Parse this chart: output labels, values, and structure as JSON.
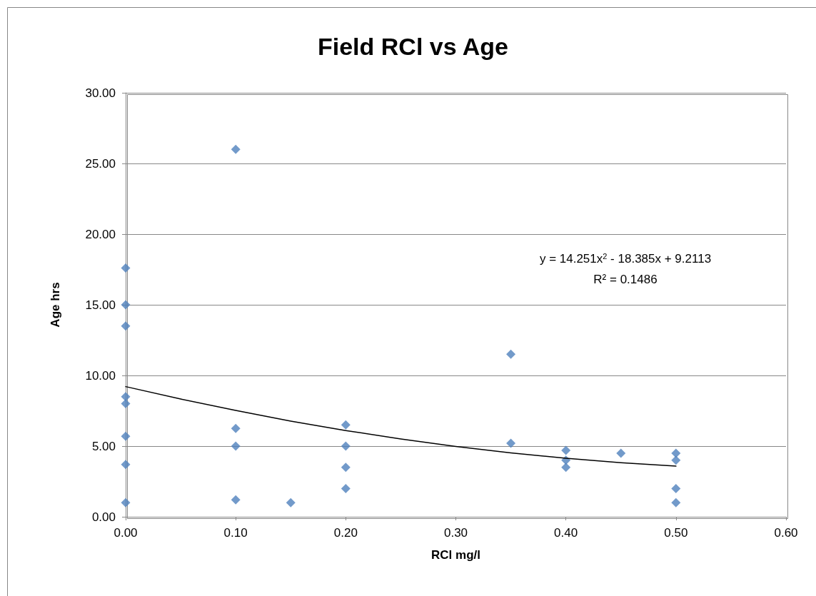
{
  "chart_data": {
    "type": "scatter",
    "title": "Field RCl vs Age",
    "xlabel": "RCl mg/l",
    "ylabel": "Age hrs",
    "series": [
      {
        "type": "scatter",
        "color": "#4f81bd",
        "marker": "diamond",
        "x": [
          0,
          0,
          0,
          0,
          0,
          0,
          0,
          0,
          0.1,
          0.1,
          0.1,
          0.1,
          0.15,
          0.2,
          0.2,
          0.2,
          0.2,
          0.35,
          0.35,
          0.4,
          0.4,
          0.4,
          0.45,
          0.5,
          0.5,
          0.5,
          0.5
        ],
        "values": [
          17.6,
          15,
          13.5,
          8.5,
          8,
          5.7,
          3.7,
          1,
          26,
          6.25,
          5,
          1.2,
          1,
          6.5,
          5,
          3.5,
          2,
          11.5,
          5.2,
          4.7,
          4,
          3.5,
          4.5,
          4.5,
          4,
          2,
          1
        ]
      },
      {
        "type": "line",
        "color": "#000000",
        "marker": "none",
        "x": [
          0,
          0.05,
          0.1,
          0.15,
          0.2,
          0.25,
          0.3,
          0.35,
          0.4,
          0.45,
          0.5
        ],
        "values": [
          9.21,
          8.33,
          7.52,
          6.77,
          6.1,
          5.51,
          4.98,
          4.52,
          4.14,
          3.82,
          3.58
        ]
      }
    ],
    "xlim": [
      0,
      0.6
    ],
    "xticks": [
      {
        "value": 0,
        "label": "0.00"
      },
      {
        "value": 0.1,
        "label": "0.10"
      },
      {
        "value": 0.2,
        "label": "0.20"
      },
      {
        "value": 0.3,
        "label": "0.30"
      },
      {
        "value": 0.4,
        "label": "0.40"
      },
      {
        "value": 0.5,
        "label": "0.50"
      },
      {
        "value": 0.6,
        "label": "0.60"
      }
    ],
    "ylim": [
      0,
      30
    ],
    "yticks": [
      {
        "value": 0,
        "label": "0.00"
      },
      {
        "value": 5,
        "label": "5.00"
      },
      {
        "value": 10,
        "label": "10.00"
      },
      {
        "value": 15,
        "label": "15.00"
      },
      {
        "value": 20,
        "label": "20.00"
      },
      {
        "value": 25,
        "label": "25.00"
      },
      {
        "value": 30,
        "label": "30.00"
      }
    ],
    "grid": "y",
    "annotations": [
      "y = 14.251x$^{2}$ - 18.385x + 9.2113",
      "R² = 0.1486"
    ]
  }
}
